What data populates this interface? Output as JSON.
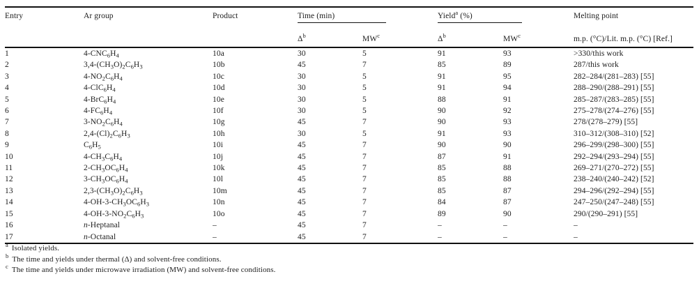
{
  "colors": {
    "text": "#1c1c1c",
    "rule": "#111111",
    "background": "#ffffff"
  },
  "table": {
    "columns": [
      "entry",
      "ar_group",
      "product",
      "time_delta",
      "time_mw",
      "yield_delta",
      "yield_mw",
      "melting_point"
    ],
    "header": {
      "entry": "Entry",
      "ar_group": "Ar group",
      "product": "Product",
      "time_group": "Time (min)",
      "yield_group": "Yield^{a} (%)",
      "melting_group": "Melting point",
      "time_delta": "Δ^{b}",
      "time_mw": "MW^{c}",
      "yield_delta": "Δ^{b}",
      "yield_mw": "MW^{c}",
      "melting_sub": "m.p. (°C)/Lit. m.p. (°C) [Ref.]"
    },
    "rows": [
      [
        "1",
        "4-CNC_{6}H_{4}",
        "10a",
        "30",
        "5",
        "91",
        "93",
        ">330/this work"
      ],
      [
        "2",
        "3,4-(CH_{3}O)_{2}C_{6}H_{3}",
        "10b",
        "45",
        "7",
        "85",
        "89",
        "287/this work"
      ],
      [
        "3",
        "4-NO_{2}C_{6}H_{4}",
        "10c",
        "30",
        "5",
        "91",
        "95",
        "282–284/(281–283) [55]"
      ],
      [
        "4",
        "4-ClC_{6}H_{4}",
        "10d",
        "30",
        "5",
        "91",
        "94",
        "288–290/(288–291) [55]"
      ],
      [
        "5",
        "4-BrC_{6}H_{4}",
        "10e",
        "30",
        "5",
        "88",
        "91",
        "285–287/(283–285) [55]"
      ],
      [
        "6",
        "4-FC_{6}H_{4}",
        "10f",
        "30",
        "5",
        "90",
        "92",
        "275–278/(274–276) [55]"
      ],
      [
        "7",
        "3-NO_{2}C_{6}H_{4}",
        "10g",
        "45",
        "7",
        "90",
        "93",
        "278/(278–279) [55]"
      ],
      [
        "8",
        "2,4-(Cl)_{2}C_{6}H_{3}",
        "10h",
        "30",
        "5",
        "91",
        "93",
        "310–312/(308–310) [52]"
      ],
      [
        "9",
        "C_{6}H_{5}",
        "10i",
        "45",
        "7",
        "90",
        "90",
        "296–299/(298–300) [55]"
      ],
      [
        "10",
        "4-CH_{3}C_{6}H_{4}",
        "10j",
        "45",
        "7",
        "87",
        "91",
        "292–294/(293–294) [55]"
      ],
      [
        "11",
        "2-CH_{3}OC_{6}H_{4}",
        "10k",
        "45",
        "7",
        "85",
        "88",
        "269–271/(270–272) [55]"
      ],
      [
        "12",
        "3-CH_{3}OC_{6}H_{4}",
        "10l",
        "45",
        "7",
        "85",
        "88",
        "238–240/(240–242) [52]"
      ],
      [
        "13",
        "2,3-(CH_{3}O)_{2}C_{6}H_{3}",
        "10m",
        "45",
        "7",
        "85",
        "87",
        "294–296/(292–294) [55]"
      ],
      [
        "14",
        "4-OH-3-CH_{3}OC_{6}H_{3}",
        "10n",
        "45",
        "7",
        "84",
        "87",
        "247–250/(247–248) [55]"
      ],
      [
        "15",
        "4-OH-3-NO_{2}C_{6}H_{3}",
        "10o",
        "45",
        "7",
        "89",
        "90",
        "290/(290–291) [55]"
      ],
      [
        "16",
        "*n*-Heptanal",
        "–",
        "45",
        "7",
        "–",
        "–",
        "–"
      ],
      [
        "17",
        "*n*-Octanal",
        "–",
        "45",
        "7",
        "–",
        "–",
        "–"
      ]
    ]
  },
  "footnotes": [
    {
      "marker": "a",
      "text": "Isolated yields."
    },
    {
      "marker": "b",
      "text": "The time and yields under thermal (Δ) and solvent-free conditions."
    },
    {
      "marker": "c",
      "text": "The time and yields under microwave irradiation (MW) and solvent-free conditions."
    }
  ]
}
